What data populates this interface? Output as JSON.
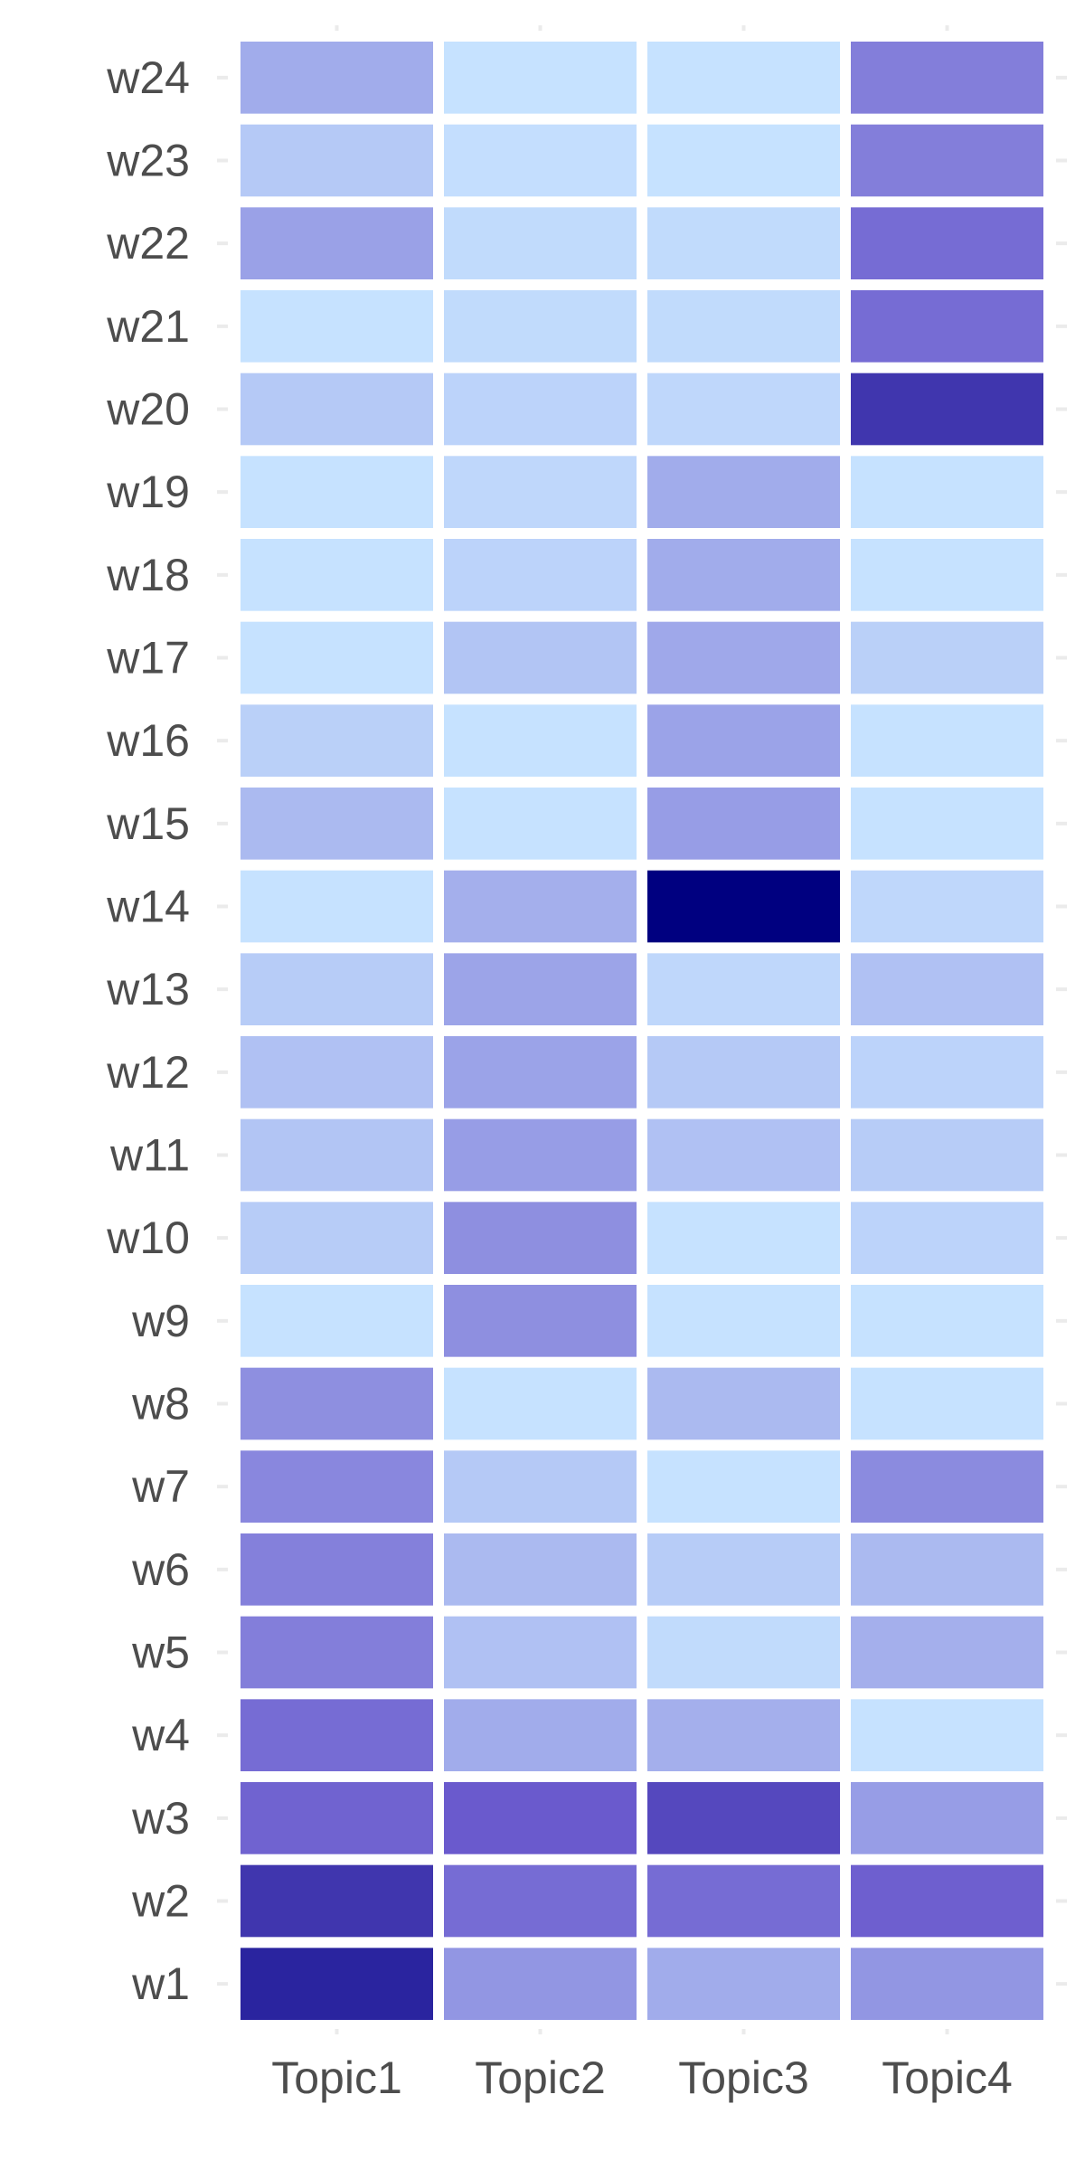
{
  "chart_data": {
    "type": "heatmap",
    "title": "",
    "xlabel": "",
    "ylabel": "",
    "x_categories": [
      "Topic1",
      "Topic2",
      "Topic3",
      "Topic4"
    ],
    "y_categories": [
      "w1",
      "w2",
      "w3",
      "w4",
      "w5",
      "w6",
      "w7",
      "w8",
      "w9",
      "w10",
      "w11",
      "w12",
      "w13",
      "w14",
      "w15",
      "w16",
      "w17",
      "w18",
      "w19",
      "w20",
      "w21",
      "w22",
      "w23",
      "w24"
    ],
    "values": [
      [
        0.9,
        0.42,
        0.3,
        0.42
      ],
      [
        0.85,
        0.65,
        0.65,
        0.72
      ],
      [
        0.7,
        0.75,
        0.8,
        0.38
      ],
      [
        0.65,
        0.3,
        0.28,
        0.0
      ],
      [
        0.55,
        0.18,
        0.04,
        0.28
      ],
      [
        0.54,
        0.22,
        0.12,
        0.22
      ],
      [
        0.5,
        0.14,
        0.0,
        0.48
      ],
      [
        0.46,
        0.0,
        0.22,
        0.0
      ],
      [
        0.0,
        0.46,
        0.0,
        0.0
      ],
      [
        0.12,
        0.46,
        0.0,
        0.08
      ],
      [
        0.16,
        0.38,
        0.18,
        0.12
      ],
      [
        0.18,
        0.35,
        0.14,
        0.08
      ],
      [
        0.12,
        0.34,
        0.06,
        0.18
      ],
      [
        0.0,
        0.28,
        1.0,
        0.06
      ],
      [
        0.22,
        0.0,
        0.38,
        0.0
      ],
      [
        0.1,
        0.0,
        0.35,
        0.0
      ],
      [
        0.0,
        0.16,
        0.32,
        0.1
      ],
      [
        0.0,
        0.08,
        0.3,
        0.0
      ],
      [
        0.0,
        0.06,
        0.3,
        0.0
      ],
      [
        0.14,
        0.08,
        0.06,
        0.85
      ],
      [
        0.0,
        0.04,
        0.04,
        0.65
      ],
      [
        0.36,
        0.04,
        0.04,
        0.65
      ],
      [
        0.14,
        0.02,
        0.0,
        0.55
      ],
      [
        0.3,
        0.0,
        0.0,
        0.55
      ]
    ],
    "color_scale": {
      "low": "#c6e2ff",
      "mid": "#6a5acd",
      "high": "#000080"
    },
    "grid": false,
    "legend": "none"
  }
}
